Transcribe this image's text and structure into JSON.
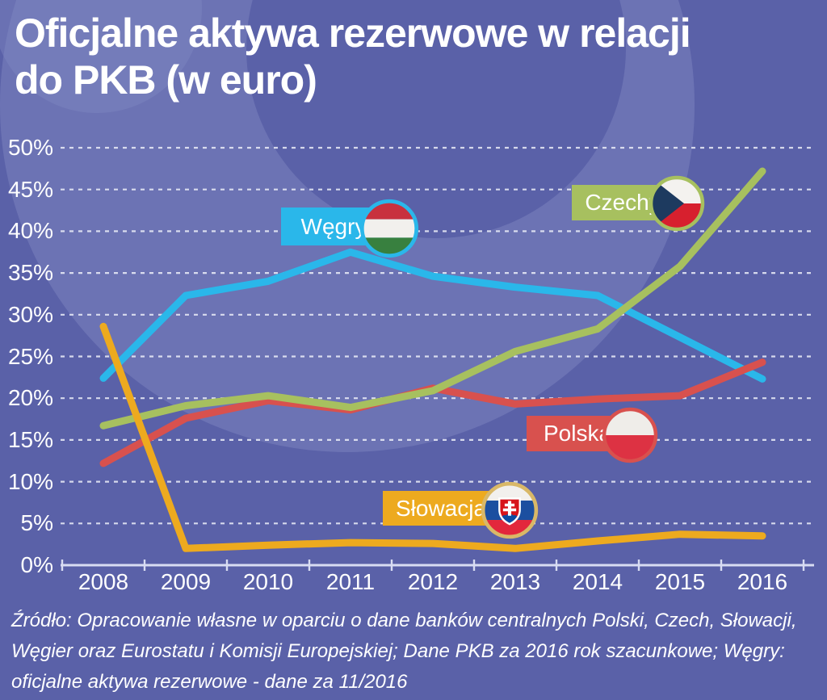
{
  "title": {
    "line1": "Oficjalne aktywa rezerwowe w relacji",
    "line2": "do PKB (w euro)"
  },
  "source": {
    "lines": [
      "Źródło: Opracowanie własne w oparciu o dane banków centralnych Polski, Czech, Słowacji,",
      "Węgier oraz Eurostatu i Komisji Europejskiej; Dane PKB za 2016 rok szacunkowe; Węgry:",
      "oficjalne aktywa rezerwowe - dane za 11/2016"
    ]
  },
  "colors": {
    "background": "#5a61a8",
    "watermark": "#838ac3",
    "grid": "#eceef8",
    "axis": "#d8dcf2",
    "text": "#ffffff"
  },
  "flags": {
    "hungary": {
      "red": "#c8313e",
      "white": "#f2f0ed",
      "green": "#38803f"
    },
    "czech": {
      "white": "#f4f2ef",
      "red": "#d7202e",
      "blue": "#1d3a5f"
    },
    "poland": {
      "white": "#efede9",
      "red": "#dd3243"
    },
    "slovakia": {
      "white": "#f2f0ed",
      "blue": "#1b4fa0",
      "red": "#e3273c",
      "shield_red": "#d7141a",
      "cross_white": "#ffffff",
      "hill_blue": "#0b4ea2",
      "ring": "#d9b867"
    }
  },
  "chart_data": {
    "type": "line",
    "title": "Oficjalne aktywa rezerwowe w relacji do PKB (w euro)",
    "x": [
      "2008",
      "2009",
      "2010",
      "2011",
      "2012",
      "2013",
      "2014",
      "2015",
      "2016"
    ],
    "unit": "%",
    "ylim": [
      0,
      50
    ],
    "ytick_values": [
      0,
      5,
      10,
      15,
      20,
      25,
      30,
      35,
      40,
      45,
      50
    ],
    "ytick_labels": [
      "0%",
      "5%",
      "10%",
      "15%",
      "20%",
      "25%",
      "30%",
      "35%",
      "40%",
      "45%",
      "50%"
    ],
    "grid": "horizontal-dashed",
    "legend_position": "floating-badges",
    "series": [
      {
        "name": "Węgry",
        "color": "#2ab7ea",
        "values": [
          22.4,
          32.3,
          34.0,
          37.5,
          34.6,
          33.3,
          32.3,
          27.3,
          22.3
        ]
      },
      {
        "name": "Czechy",
        "color": "#a7c05f",
        "values": [
          16.7,
          19.1,
          20.3,
          18.9,
          20.9,
          25.6,
          28.3,
          35.8,
          47.2
        ]
      },
      {
        "name": "Polska",
        "color": "#d8514e",
        "values": [
          12.2,
          17.6,
          19.7,
          18.6,
          21.2,
          19.3,
          19.9,
          20.3,
          24.3
        ]
      },
      {
        "name": "Słowacja",
        "color": "#edaa1f",
        "ring": "#d9b867",
        "values": [
          28.6,
          2.0,
          2.4,
          2.7,
          2.6,
          2.0,
          2.9,
          3.7,
          3.5
        ]
      }
    ]
  }
}
